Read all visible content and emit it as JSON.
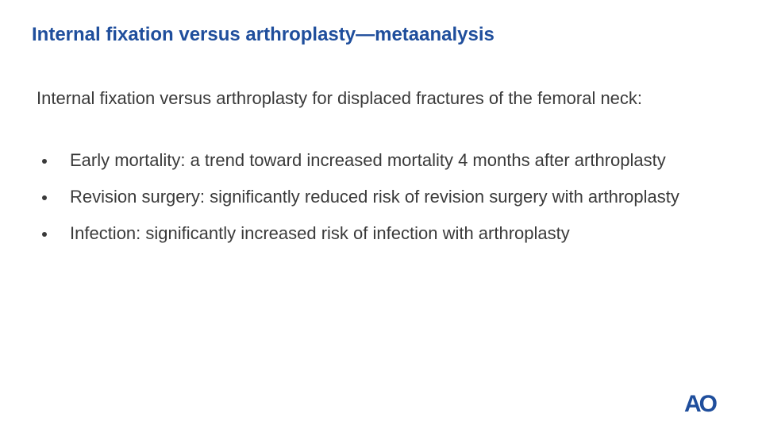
{
  "header": {
    "title": "Internal fixation versus arthroplasty—metaanalysis"
  },
  "body": {
    "intro": "Internal fixation versus arthroplasty for displaced fractures of the femoral neck:",
    "bullets": [
      "Early mortality: a trend toward increased mortality 4 months after arthroplasty",
      "Revision surgery: significantly reduced risk of revision surgery with arthroplasty",
      "Infection: significantly increased risk of infection with arthroplasty"
    ]
  },
  "footer": {
    "logo": "AO"
  }
}
